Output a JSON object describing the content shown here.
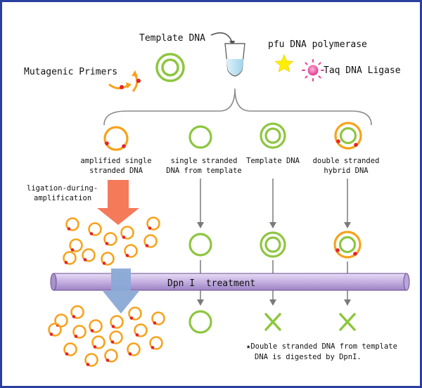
{
  "labels": {
    "template_dna": "Template DNA",
    "mutagenic_primers": "Mutagenic Primers",
    "pfu_polymerase": "pfu DNA polymerase",
    "taq_ligase": "Taq DNA Ligase",
    "branch_amplified_line1": "amplified single",
    "branch_amplified_line2": "stranded DNA",
    "branch_single_line1": "single stranded",
    "branch_single_line2": "DNA from template",
    "branch_template": "Template DNA",
    "branch_hybrid_line1": "double stranded",
    "branch_hybrid_line2": "hybrid DNA",
    "ligation_line1": "ligation-during-",
    "ligation_line2": "amplification",
    "dpn_treatment": "Dpn I  treatment",
    "note_line1": "★Double stranded DNA from template",
    "note_line2": "DNA is digested by DpnI."
  },
  "colors": {
    "border": "#2a3f9e",
    "green": "#8dc63f",
    "orange": "#f7a21b",
    "mutation_red": "#e8202a",
    "arrow_gray": "#7a7a7a",
    "bar_purple": "#c9b6e4",
    "bar_edge": "#6a4c93",
    "salmon_arrow": "#f47a5a",
    "blue_arrow": "#8aa9d6",
    "star_yellow": "#ffee00",
    "ligase_pink": "#e83e9a",
    "tube_blue": "#a9dcef"
  }
}
